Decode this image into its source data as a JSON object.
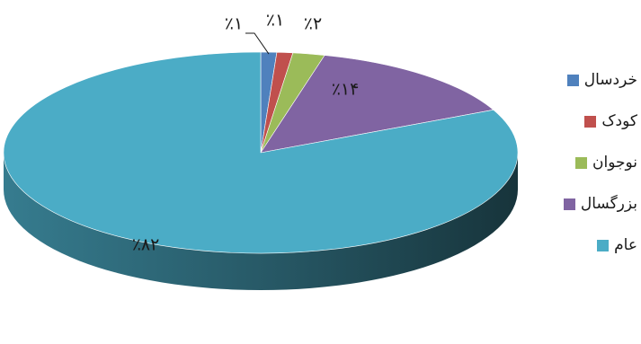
{
  "chart_data": {
    "type": "pie",
    "title": "",
    "style": "3d",
    "categories": [
      "خردسال",
      "کودک",
      "نوجوان",
      "بزرگسال",
      "عام"
    ],
    "values": [
      1,
      1,
      2,
      14,
      82
    ],
    "data_labels": [
      "٪۱",
      "٪۱",
      "٪۲",
      "٪۱۴",
      "٪۸۲"
    ],
    "colors": [
      "#4f81bd",
      "#c0504d",
      "#9bbb59",
      "#8064a2",
      "#4bacc6"
    ],
    "legend_position": "right"
  }
}
